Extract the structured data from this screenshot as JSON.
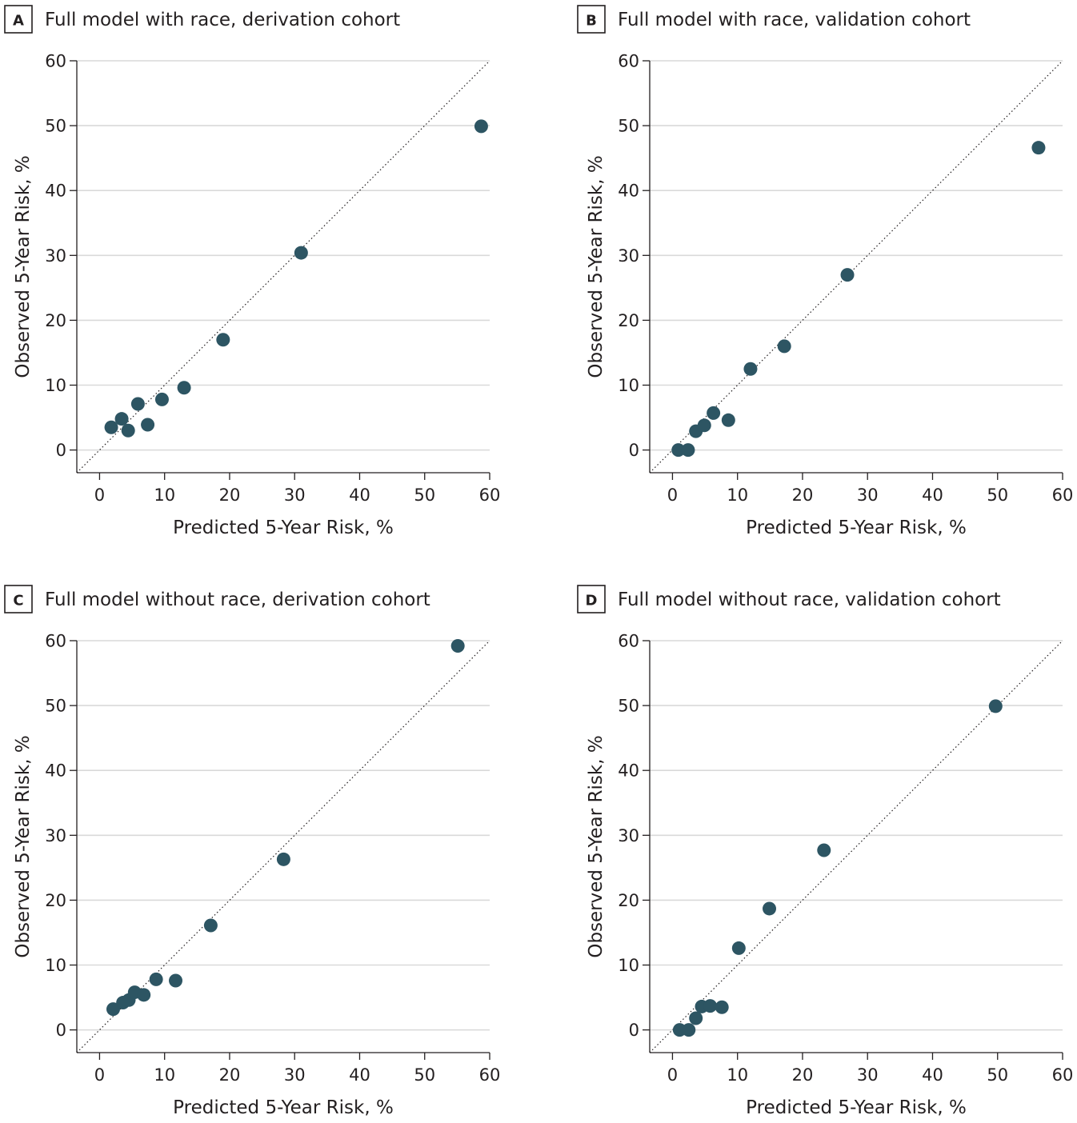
{
  "style": {
    "marker_color": "#2d5563",
    "text_color": "#231f20",
    "grid_color": "#d9d9d9"
  },
  "chart_data": [
    {
      "letter": "A",
      "type": "scatter",
      "title": "Full model with race, derivation cohort",
      "xlabel": "Predicted 5-Year Risk, %",
      "ylabel": "Observed 5-Year Risk, %",
      "xlim": [
        -3.5,
        60
      ],
      "ylim": [
        -3.5,
        60
      ],
      "xticks": [
        0,
        10,
        20,
        30,
        40,
        50,
        60
      ],
      "yticks": [
        0,
        10,
        20,
        30,
        40,
        50,
        60
      ],
      "reference_line": "y = x",
      "points": [
        {
          "x": 1.8,
          "y": 3.5
        },
        {
          "x": 3.4,
          "y": 4.8
        },
        {
          "x": 4.4,
          "y": 3.0
        },
        {
          "x": 5.9,
          "y": 7.1
        },
        {
          "x": 7.4,
          "y": 3.9
        },
        {
          "x": 9.6,
          "y": 7.8
        },
        {
          "x": 13.0,
          "y": 9.6
        },
        {
          "x": 19.0,
          "y": 17.0
        },
        {
          "x": 31.0,
          "y": 30.4
        },
        {
          "x": 58.7,
          "y": 49.9
        }
      ]
    },
    {
      "letter": "B",
      "type": "scatter",
      "title": "Full model with race, validation cohort",
      "xlabel": "Predicted 5-Year Risk, %",
      "ylabel": "Observed 5-Year Risk, %",
      "xlim": [
        -3.5,
        60
      ],
      "ylim": [
        -3.5,
        60
      ],
      "xticks": [
        0,
        10,
        20,
        30,
        40,
        50,
        60
      ],
      "yticks": [
        0,
        10,
        20,
        30,
        40,
        50,
        60
      ],
      "reference_line": "y = x",
      "points": [
        {
          "x": 0.9,
          "y": 0.0
        },
        {
          "x": 2.4,
          "y": 0.0
        },
        {
          "x": 3.6,
          "y": 2.9
        },
        {
          "x": 4.9,
          "y": 3.8
        },
        {
          "x": 6.3,
          "y": 5.7
        },
        {
          "x": 8.6,
          "y": 4.6
        },
        {
          "x": 12.0,
          "y": 12.5
        },
        {
          "x": 17.2,
          "y": 16.0
        },
        {
          "x": 26.9,
          "y": 27.0
        },
        {
          "x": 56.3,
          "y": 46.6
        }
      ]
    },
    {
      "letter": "C",
      "type": "scatter",
      "title": "Full model without race, derivation cohort",
      "xlabel": "Predicted 5-Year Risk, %",
      "ylabel": "Observed 5-Year Risk, %",
      "xlim": [
        -3.5,
        60
      ],
      "ylim": [
        -3.5,
        60
      ],
      "xticks": [
        0,
        10,
        20,
        30,
        40,
        50,
        60
      ],
      "yticks": [
        0,
        10,
        20,
        30,
        40,
        50,
        60
      ],
      "reference_line": "y = x",
      "points": [
        {
          "x": 2.1,
          "y": 3.2
        },
        {
          "x": 3.6,
          "y": 4.2
        },
        {
          "x": 4.5,
          "y": 4.6
        },
        {
          "x": 5.4,
          "y": 5.8
        },
        {
          "x": 6.8,
          "y": 5.4
        },
        {
          "x": 8.7,
          "y": 7.8
        },
        {
          "x": 11.7,
          "y": 7.6
        },
        {
          "x": 17.1,
          "y": 16.1
        },
        {
          "x": 28.3,
          "y": 26.3
        },
        {
          "x": 55.1,
          "y": 59.2
        }
      ]
    },
    {
      "letter": "D",
      "type": "scatter",
      "title": "Full model without race, validation cohort",
      "xlabel": "Predicted 5-Year Risk, %",
      "ylabel": "Observed 5-Year Risk, %",
      "xlim": [
        -3.5,
        60
      ],
      "ylim": [
        -3.5,
        60
      ],
      "xticks": [
        0,
        10,
        20,
        30,
        40,
        50,
        60
      ],
      "yticks": [
        0,
        10,
        20,
        30,
        40,
        50,
        60
      ],
      "reference_line": "y = x",
      "points": [
        {
          "x": 1.1,
          "y": 0.0
        },
        {
          "x": 2.5,
          "y": 0.0
        },
        {
          "x": 3.6,
          "y": 1.8
        },
        {
          "x": 4.5,
          "y": 3.6
        },
        {
          "x": 5.8,
          "y": 3.7
        },
        {
          "x": 7.6,
          "y": 3.5
        },
        {
          "x": 10.2,
          "y": 12.6
        },
        {
          "x": 14.9,
          "y": 18.7
        },
        {
          "x": 23.3,
          "y": 27.7
        },
        {
          "x": 49.7,
          "y": 49.9
        }
      ]
    }
  ]
}
